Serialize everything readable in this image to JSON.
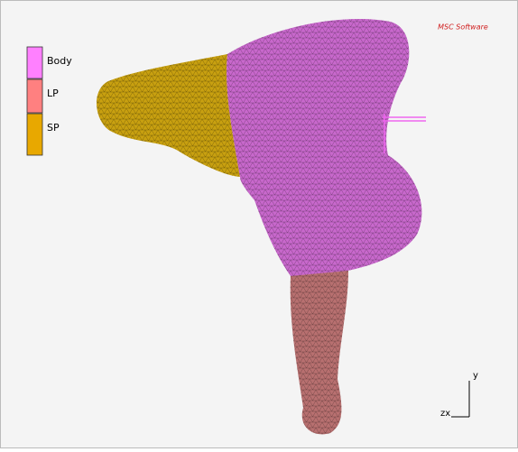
{
  "legend": [
    {
      "label": "Body",
      "color": "#ff80ff"
    },
    {
      "label": "LP",
      "color": "#ff8080"
    },
    {
      "label": "SP",
      "color": "#e8a800"
    }
  ],
  "logo": "MSC Software",
  "triad": {
    "y": "y",
    "zx": "zx"
  }
}
